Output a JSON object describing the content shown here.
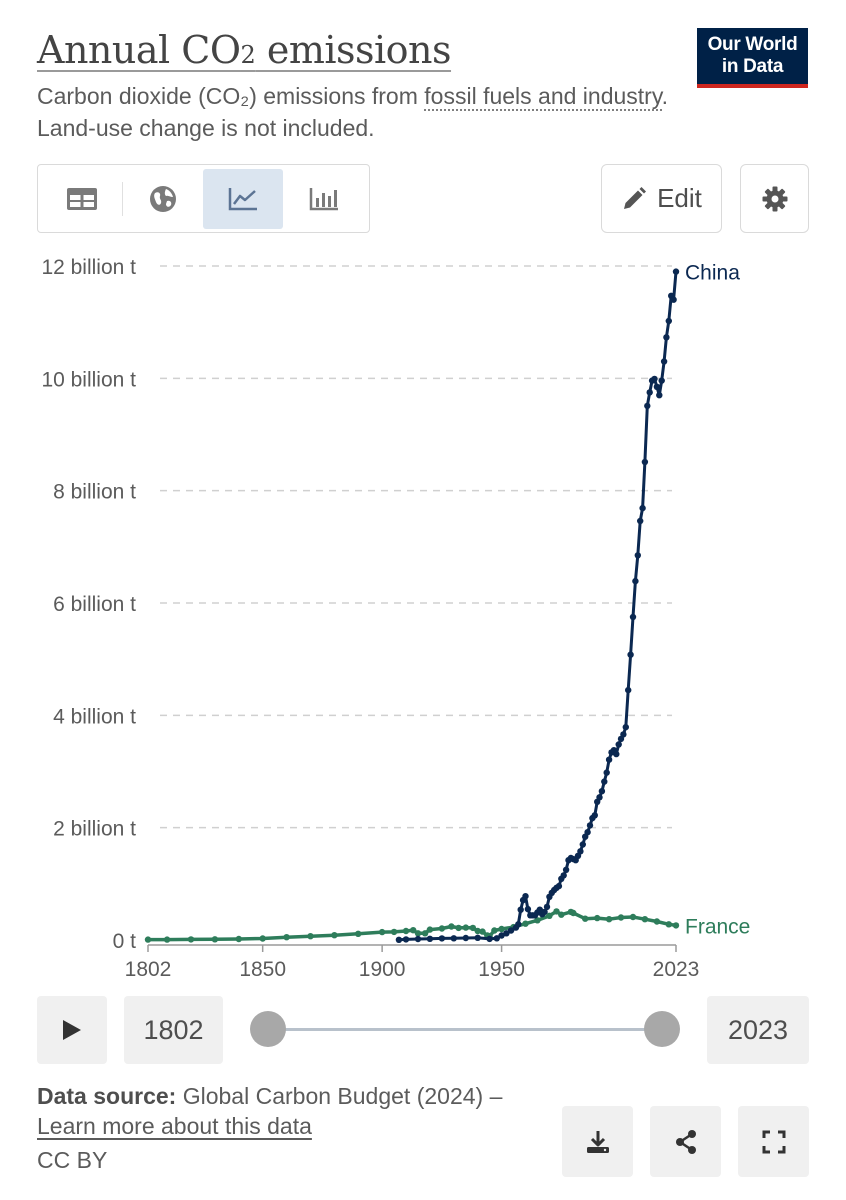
{
  "header": {
    "title_main": "Annual CO",
    "title_sub": "2",
    "title_rest": " emissions",
    "subtitle_pre": "Carbon dioxide (CO₂) emissions from ",
    "subtitle_link": "fossil fuels and industry",
    "subtitle_post": ". Land-use change is not included.",
    "logo_line1": "Our World",
    "logo_line2": "in Data"
  },
  "toolbar": {
    "tabs": [
      {
        "icon": "table-icon",
        "active": false
      },
      {
        "icon": "globe-icon",
        "active": false
      },
      {
        "icon": "line-chart-icon",
        "active": true
      },
      {
        "icon": "bar-chart-icon",
        "active": false
      }
    ],
    "edit_label": "Edit",
    "settings_icon": "gear-icon"
  },
  "timeline": {
    "start_year": "1802",
    "end_year": "2023",
    "play_icon": "play-icon"
  },
  "footer": {
    "source_label": "Data source:",
    "source_text": " Global Carbon Budget (2024) – ",
    "source_link": "Learn more about this data",
    "license": "CC BY",
    "actions": [
      "download-icon",
      "share-icon",
      "fullscreen-icon"
    ]
  },
  "colors": {
    "china": "#0b2851",
    "france": "#2e7d5b",
    "accent": "#ce261e",
    "brand": "#002147",
    "grid": "#d0d0d0"
  },
  "chart_data": {
    "type": "line",
    "title": "Annual CO₂ emissions",
    "ylim": [
      0,
      12000000000
    ],
    "xlim": [
      1802,
      2023
    ],
    "y_ticks": [
      {
        "value": 0,
        "label": "0 t"
      },
      {
        "value": 2000000000,
        "label": "2 billion t"
      },
      {
        "value": 4000000000,
        "label": "4 billion t"
      },
      {
        "value": 6000000000,
        "label": "6 billion t"
      },
      {
        "value": 8000000000,
        "label": "8 billion t"
      },
      {
        "value": 10000000000,
        "label": "10 billion t"
      },
      {
        "value": 12000000000,
        "label": "12 billion t"
      }
    ],
    "x_ticks": [
      "1802",
      "1850",
      "1900",
      "1950",
      "2023"
    ],
    "grid": true,
    "series": [
      {
        "name": "China",
        "x": [
          1907,
          1910,
          1915,
          1920,
          1925,
          1930,
          1935,
          1940,
          1945,
          1948,
          1950,
          1952,
          1954,
          1956,
          1957,
          1958,
          1959,
          1960,
          1961,
          1962,
          1963,
          1964,
          1965,
          1966,
          1967,
          1968,
          1969,
          1970,
          1971,
          1972,
          1973,
          1974,
          1975,
          1976,
          1977,
          1978,
          1979,
          1980,
          1981,
          1982,
          1983,
          1984,
          1985,
          1986,
          1987,
          1988,
          1989,
          1990,
          1991,
          1992,
          1993,
          1994,
          1995,
          1996,
          1997,
          1998,
          1999,
          2000,
          2001,
          2002,
          2003,
          2004,
          2005,
          2006,
          2007,
          2008,
          2009,
          2010,
          2011,
          2012,
          2013,
          2014,
          2015,
          2016,
          2017,
          2018,
          2019,
          2020,
          2021,
          2022,
          2023
        ],
        "values": [
          4000000,
          10000000,
          18000000,
          22000000,
          28000000,
          30000000,
          35000000,
          40000000,
          20000000,
          30000000,
          80000000,
          120000000,
          170000000,
          220000000,
          280000000,
          540000000,
          710000000,
          780000000,
          550000000,
          440000000,
          440000000,
          440000000,
          490000000,
          540000000,
          460000000,
          500000000,
          590000000,
          770000000,
          840000000,
          890000000,
          930000000,
          960000000,
          1090000000,
          1150000000,
          1250000000,
          1420000000,
          1460000000,
          1440000000,
          1420000000,
          1500000000,
          1580000000,
          1700000000,
          1840000000,
          1920000000,
          2040000000,
          2170000000,
          2220000000,
          2460000000,
          2540000000,
          2650000000,
          2820000000,
          2980000000,
          3210000000,
          3340000000,
          3380000000,
          3310000000,
          3480000000,
          3580000000,
          3660000000,
          3790000000,
          4450000000,
          5080000000,
          5750000000,
          6390000000,
          6850000000,
          7460000000,
          7690000000,
          8510000000,
          9510000000,
          9750000000,
          9960000000,
          9990000000,
          9850000000,
          9700000000,
          9960000000,
          10300000000,
          10730000000,
          11020000000,
          11470000000,
          11400000000,
          11900000000
        ]
      },
      {
        "name": "France",
        "x": [
          1802,
          1810,
          1820,
          1830,
          1840,
          1850,
          1860,
          1870,
          1880,
          1890,
          1900,
          1905,
          1910,
          1913,
          1915,
          1918,
          1920,
          1925,
          1929,
          1932,
          1935,
          1938,
          1940,
          1942,
          1944,
          1945,
          1947,
          1950,
          1955,
          1960,
          1965,
          1970,
          1973,
          1975,
          1979,
          1980,
          1985,
          1990,
          1995,
          2000,
          2005,
          2010,
          2015,
          2020,
          2023
        ],
        "values": [
          7000000,
          8000000,
          10000000,
          13000000,
          18000000,
          27000000,
          50000000,
          67000000,
          86000000,
          110000000,
          140000000,
          145000000,
          160000000,
          175000000,
          120000000,
          120000000,
          185000000,
          205000000,
          240000000,
          215000000,
          220000000,
          215000000,
          160000000,
          150000000,
          80000000,
          70000000,
          170000000,
          195000000,
          230000000,
          290000000,
          350000000,
          430000000,
          510000000,
          450000000,
          500000000,
          480000000,
          380000000,
          390000000,
          370000000,
          400000000,
          410000000,
          370000000,
          330000000,
          280000000,
          260000000
        ]
      }
    ]
  }
}
